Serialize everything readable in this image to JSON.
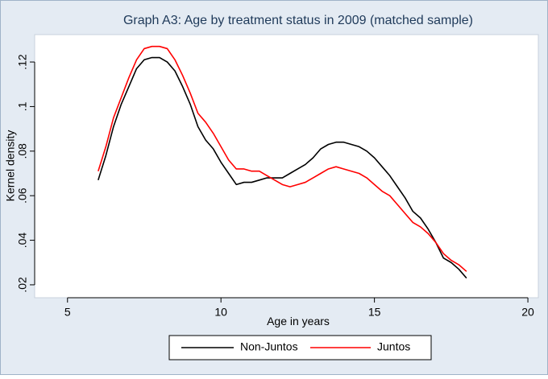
{
  "chart_data": {
    "type": "line",
    "title": "Graph A3: Age by treatment status in 2009 (matched sample)",
    "x_label": "Age in years",
    "y_label": "Kernel density",
    "x": [
      6,
      6.25,
      6.5,
      6.75,
      7,
      7.25,
      7.5,
      7.75,
      8,
      8.25,
      8.5,
      8.75,
      9,
      9.25,
      9.5,
      9.75,
      10,
      10.25,
      10.5,
      10.75,
      11,
      11.25,
      11.5,
      11.75,
      12,
      12.25,
      12.5,
      12.75,
      13,
      13.25,
      13.5,
      13.75,
      14,
      14.25,
      14.5,
      14.75,
      15,
      15.25,
      15.5,
      15.75,
      16,
      16.25,
      16.5,
      16.75,
      17,
      17.25,
      17.5,
      17.75,
      18
    ],
    "series": [
      {
        "name": "Non-Juntos",
        "color": "#000000",
        "values": [
          0.067,
          0.078,
          0.091,
          0.101,
          0.109,
          0.117,
          0.121,
          0.122,
          0.122,
          0.12,
          0.116,
          0.109,
          0.101,
          0.091,
          0.085,
          0.081,
          0.075,
          0.07,
          0.065,
          0.066,
          0.066,
          0.067,
          0.068,
          0.068,
          0.068,
          0.07,
          0.072,
          0.074,
          0.077,
          0.081,
          0.083,
          0.084,
          0.084,
          0.083,
          0.082,
          0.08,
          0.077,
          0.073,
          0.069,
          0.064,
          0.059,
          0.053,
          0.05,
          0.045,
          0.039,
          0.032,
          0.03,
          0.027,
          0.023
        ]
      },
      {
        "name": "Juntos",
        "color": "#ff0000",
        "values": [
          0.071,
          0.082,
          0.095,
          0.104,
          0.113,
          0.121,
          0.126,
          0.127,
          0.127,
          0.126,
          0.121,
          0.114,
          0.106,
          0.097,
          0.093,
          0.088,
          0.082,
          0.076,
          0.072,
          0.072,
          0.071,
          0.071,
          0.069,
          0.067,
          0.065,
          0.064,
          0.065,
          0.066,
          0.068,
          0.07,
          0.072,
          0.073,
          0.072,
          0.071,
          0.07,
          0.068,
          0.065,
          0.062,
          0.06,
          0.056,
          0.052,
          0.048,
          0.046,
          0.043,
          0.039,
          0.034,
          0.031,
          0.029,
          0.026
        ]
      }
    ],
    "xlim": [
      3.93,
      20.34
    ],
    "xticks": [
      5,
      10,
      15,
      20
    ],
    "ylim": [
      0.0142,
      0.1323
    ],
    "yticks": [
      {
        "value": 0.02,
        "label": ".02"
      },
      {
        "value": 0.04,
        "label": ".04"
      },
      {
        "value": 0.06,
        "label": ".06"
      },
      {
        "value": 0.08,
        "label": ".08"
      },
      {
        "value": 0.1,
        "label": ".1"
      },
      {
        "value": 0.12,
        "label": ".12"
      }
    ],
    "grid": false,
    "legend": "bottom"
  }
}
